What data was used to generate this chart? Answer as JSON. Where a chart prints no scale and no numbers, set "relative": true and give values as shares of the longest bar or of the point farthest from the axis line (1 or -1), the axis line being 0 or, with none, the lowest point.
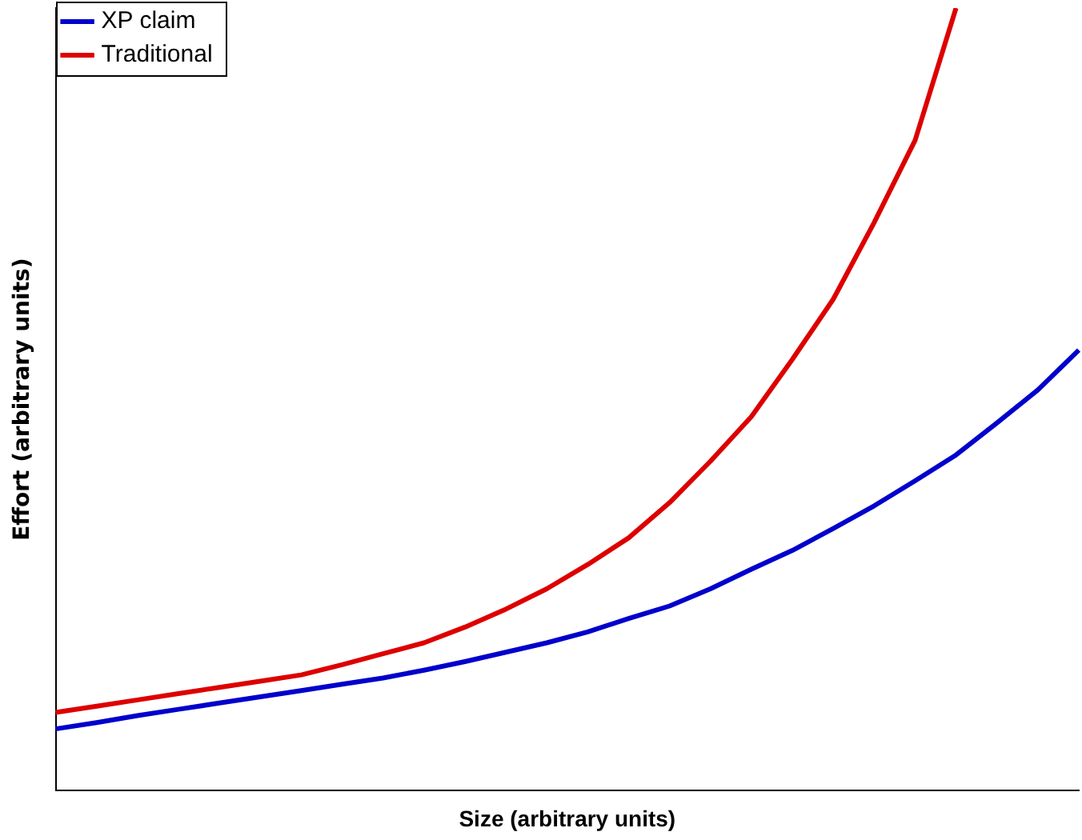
{
  "chart_data": {
    "type": "line",
    "relative": true,
    "xlabel": "Size (arbitrary units)",
    "ylabel": "Effort (arbitrary units)",
    "legend": "top left",
    "grid": false,
    "marker": "none",
    "line_style": "solid",
    "categories": [
      null,
      null,
      null,
      null,
      null,
      null,
      null,
      null,
      null,
      null,
      null,
      null,
      null,
      null,
      null,
      null,
      null,
      null,
      null,
      null,
      null,
      null,
      null,
      null,
      null,
      null
    ],
    "series": [
      {
        "name": "XP claim",
        "color": "#0000cc",
        "values": [
          0.079,
          0.087,
          0.096,
          0.104,
          0.112,
          0.12,
          0.128,
          0.136,
          0.144,
          0.154,
          0.165,
          0.177,
          0.189,
          0.203,
          0.22,
          0.236,
          0.258,
          0.283,
          0.307,
          0.335,
          0.364,
          0.396,
          0.429,
          0.47,
          0.512,
          0.563
        ]
      },
      {
        "name": "Traditional",
        "color": "#dd0000",
        "values": [
          0.1,
          0.108,
          0.116,
          0.124,
          0.132,
          0.14,
          0.148,
          0.161,
          0.175,
          0.189,
          0.209,
          0.232,
          0.258,
          0.289,
          0.323,
          0.368,
          0.421,
          0.478,
          0.551,
          0.628,
          0.726,
          0.831,
          1,
          null,
          null,
          null
        ]
      }
    ]
  }
}
